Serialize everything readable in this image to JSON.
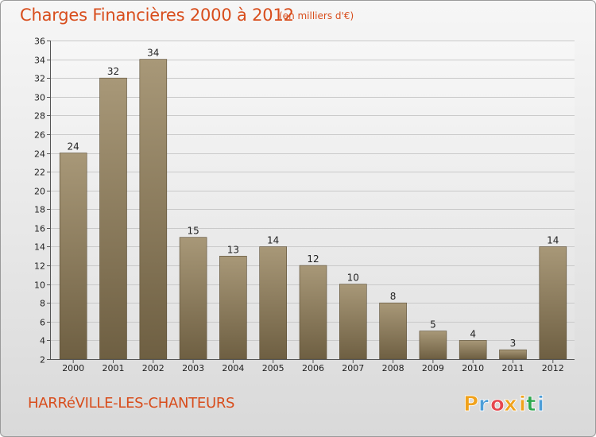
{
  "header": {
    "title": "Charges Financières 2000 à 2012",
    "unit": "(en milliers d'€)"
  },
  "footer": {
    "city": "HARRéVILLE-LES-CHANTEURS",
    "logo_text": "Proxiti",
    "logo_letters": [
      "P",
      "r",
      "o",
      "x",
      "i",
      "t",
      "i"
    ],
    "logo_colors": [
      "#f0a21c",
      "#4d9ed8",
      "#e6474e",
      "#f0a21c",
      "#f0a21c",
      "#2fa84f",
      "#4d9ed8"
    ]
  },
  "chart_data": {
    "type": "bar",
    "title": "Charges Financières 2000 à 2012",
    "subtitle": "(en milliers d'€)",
    "categories": [
      "2000",
      "2001",
      "2002",
      "2003",
      "2004",
      "2005",
      "2006",
      "2007",
      "2008",
      "2009",
      "2010",
      "2011",
      "2012"
    ],
    "values": [
      24,
      32,
      34,
      15,
      13,
      14,
      12,
      10,
      8,
      5,
      4,
      3,
      14
    ],
    "ylim": [
      2,
      36
    ],
    "yticks": [
      2,
      4,
      6,
      8,
      10,
      12,
      14,
      16,
      18,
      20,
      22,
      24,
      26,
      28,
      30,
      32,
      34,
      36
    ],
    "grid": true,
    "bar_color_top": "#a89878",
    "bar_color_bottom": "#6e5f42"
  }
}
